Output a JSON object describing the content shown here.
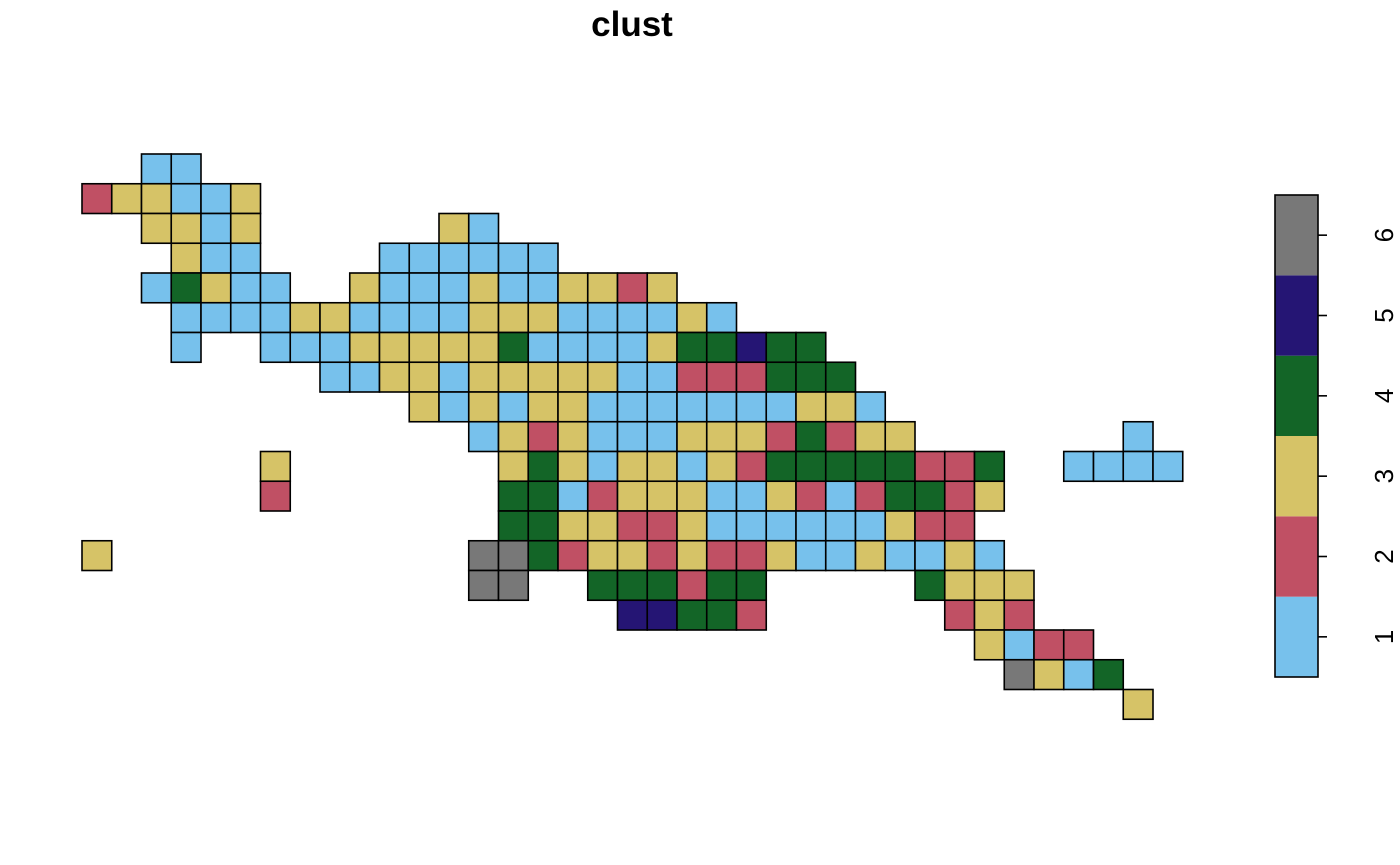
{
  "chart_data": {
    "type": "heatmap",
    "title": "clust",
    "xlabel": "",
    "ylabel": "",
    "grid": false,
    "legend_position": "right",
    "palette": {
      "1": "#77c1ec",
      "2": "#c05064",
      "3": "#d6c367",
      "4": "#136527",
      "5": "#251574",
      "6": "#787878"
    },
    "legend": {
      "ticks": [
        1,
        2,
        3,
        4,
        5,
        6
      ],
      "tick_labels": [
        "1",
        "2",
        "3",
        "4",
        "5",
        "6"
      ],
      "range": [
        0.5,
        6.5
      ]
    },
    "n_cols": 37,
    "n_rows": 19,
    "rows": [
      {
        "row": 0,
        "start": 2,
        "values": [
          1,
          1
        ]
      },
      {
        "row": 1,
        "start": 0,
        "values": [
          2,
          3,
          3,
          1,
          1,
          3
        ]
      },
      {
        "row": 2,
        "start": 2,
        "values": [
          3,
          3,
          1,
          3
        ]
      },
      {
        "row": 2,
        "start": 12,
        "values": [
          3,
          1
        ]
      },
      {
        "row": 3,
        "start": 3,
        "values": [
          3,
          1,
          1
        ]
      },
      {
        "row": 3,
        "start": 10,
        "values": [
          1,
          1,
          1,
          1,
          1,
          1
        ]
      },
      {
        "row": 4,
        "start": 2,
        "values": [
          1,
          4,
          3,
          1,
          1
        ]
      },
      {
        "row": 4,
        "start": 9,
        "values": [
          3,
          1,
          1,
          1,
          3,
          1,
          1,
          3,
          3,
          2,
          3
        ]
      },
      {
        "row": 5,
        "start": 3,
        "values": [
          1,
          1,
          1,
          1,
          3,
          3,
          1,
          1,
          1,
          1,
          3,
          3,
          3,
          1,
          1,
          1,
          1,
          3,
          1
        ]
      },
      {
        "row": 6,
        "start": 3,
        "values": [
          1
        ]
      },
      {
        "row": 6,
        "start": 6,
        "values": [
          1,
          1,
          1,
          3,
          3,
          3,
          3,
          3,
          4,
          1,
          1,
          1,
          1,
          3,
          4,
          4,
          5,
          4,
          4
        ]
      },
      {
        "row": 7,
        "start": 8,
        "values": [
          1,
          1,
          3,
          3,
          1,
          3,
          3,
          3,
          3,
          3,
          1,
          1,
          2,
          2,
          2,
          4,
          4,
          4
        ]
      },
      {
        "row": 8,
        "start": 11,
        "values": [
          3,
          1,
          3,
          1,
          3,
          3,
          1,
          1,
          1,
          1,
          1,
          1,
          1,
          3,
          3,
          1
        ]
      },
      {
        "row": 9,
        "start": 13,
        "values": [
          1,
          3,
          2,
          3,
          1,
          1,
          1,
          3,
          3,
          3,
          2,
          4,
          2,
          3,
          3
        ]
      },
      {
        "row": 9,
        "start": 35,
        "values": [
          1
        ]
      },
      {
        "row": 10,
        "start": 6,
        "values": [
          3
        ]
      },
      {
        "row": 10,
        "start": 14,
        "values": [
          3,
          4,
          3,
          1,
          3,
          3,
          1,
          3,
          2,
          4,
          4,
          4,
          4,
          4,
          2,
          2,
          4
        ]
      },
      {
        "row": 10,
        "start": 33,
        "values": [
          1,
          1,
          1,
          1
        ]
      },
      {
        "row": 11,
        "start": 6,
        "values": [
          2
        ]
      },
      {
        "row": 11,
        "start": 14,
        "values": [
          4,
          4,
          1,
          2,
          3,
          3,
          3,
          1,
          1,
          3,
          2,
          1,
          2,
          4,
          4,
          2,
          3
        ]
      },
      {
        "row": 12,
        "start": 14,
        "values": [
          4,
          4,
          3,
          3,
          2,
          2,
          3,
          1,
          1,
          1,
          1,
          1,
          1,
          3,
          2,
          2
        ]
      },
      {
        "row": 13,
        "start": 0,
        "values": [
          3
        ]
      },
      {
        "row": 13,
        "start": 13,
        "values": [
          6,
          6,
          4,
          2,
          3,
          3,
          2,
          3,
          2,
          2,
          3,
          1,
          1,
          3,
          1,
          1,
          3,
          1
        ]
      },
      {
        "row": 14,
        "start": 13,
        "values": [
          6,
          6
        ]
      },
      {
        "row": 14,
        "start": 17,
        "values": [
          4,
          4,
          4,
          2,
          4,
          4
        ]
      },
      {
        "row": 14,
        "start": 28,
        "values": [
          4,
          3,
          3,
          3
        ]
      },
      {
        "row": 15,
        "start": 18,
        "values": [
          5,
          5,
          4,
          4,
          2
        ]
      },
      {
        "row": 15,
        "start": 29,
        "values": [
          2,
          3,
          2
        ]
      },
      {
        "row": 16,
        "start": 30,
        "values": [
          3,
          1,
          2,
          2
        ]
      },
      {
        "row": 17,
        "start": 31,
        "values": [
          6,
          3,
          1,
          4
        ]
      },
      {
        "row": 18,
        "start": 35,
        "values": [
          3
        ]
      }
    ]
  }
}
